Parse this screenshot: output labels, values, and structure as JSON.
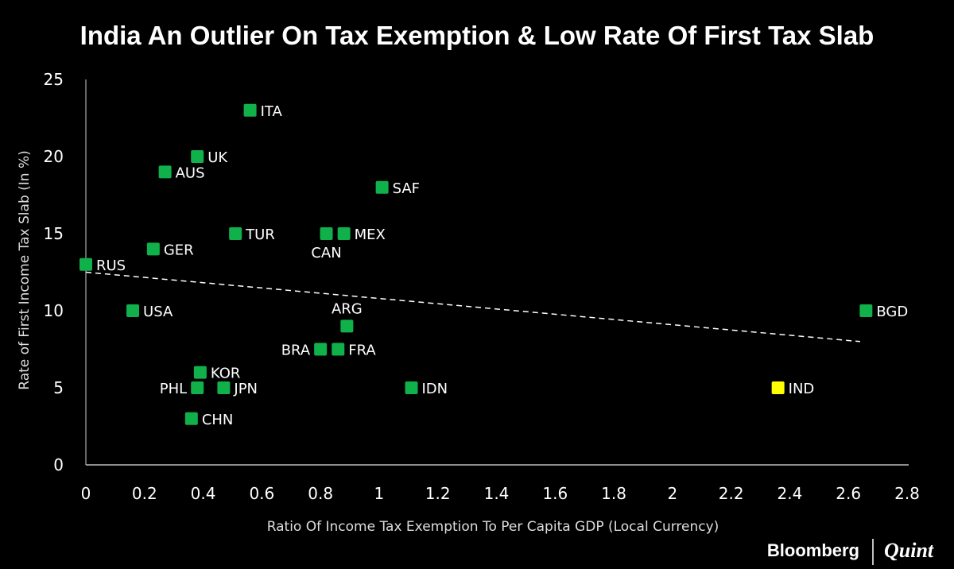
{
  "chart_data": {
    "type": "scatter",
    "title": "India An Outlier On Tax Exemption & Low Rate Of First Tax Slab",
    "xlabel": "Ratio Of Income Tax Exemption To Per Capita GDP (Local Currency)",
    "ylabel": "Rate of First Income Tax Slab (In %)",
    "xlim": [
      0,
      2.8
    ],
    "ylim": [
      0,
      25
    ],
    "xticks": [
      "0",
      "0.2",
      "0.4",
      "0.6",
      "0.8",
      "1",
      "1.2",
      "1.4",
      "1.6",
      "1.8",
      "2",
      "2.2",
      "2.4",
      "2.6",
      "2.8"
    ],
    "yticks": [
      "0",
      "5",
      "10",
      "15",
      "20",
      "25"
    ],
    "grid": false,
    "colors": {
      "default": "#10b04a",
      "highlight": "#ffff00",
      "trendline": "#ffffff",
      "background": "#000000"
    },
    "points": [
      {
        "label": "RUS",
        "x": 0.0,
        "y": 13,
        "labelPos": "right"
      },
      {
        "label": "USA",
        "x": 0.16,
        "y": 10,
        "labelPos": "right"
      },
      {
        "label": "GER",
        "x": 0.23,
        "y": 14,
        "labelPos": "right"
      },
      {
        "label": "AUS",
        "x": 0.27,
        "y": 19,
        "labelPos": "right"
      },
      {
        "label": "UK",
        "x": 0.38,
        "y": 20,
        "labelPos": "right"
      },
      {
        "label": "ITA",
        "x": 0.56,
        "y": 23,
        "labelPos": "right"
      },
      {
        "label": "TUR",
        "x": 0.51,
        "y": 15,
        "labelPos": "right"
      },
      {
        "label": "CAN",
        "x": 0.82,
        "y": 15,
        "labelPos": "below"
      },
      {
        "label": "MEX",
        "x": 0.88,
        "y": 15,
        "labelPos": "right"
      },
      {
        "label": "SAF",
        "x": 1.01,
        "y": 18,
        "labelPos": "right"
      },
      {
        "label": "ARG",
        "x": 0.89,
        "y": 9,
        "labelPos": "above"
      },
      {
        "label": "BRA",
        "x": 0.8,
        "y": 7.5,
        "labelPos": "left"
      },
      {
        "label": "FRA",
        "x": 0.86,
        "y": 7.5,
        "labelPos": "right"
      },
      {
        "label": "KOR",
        "x": 0.39,
        "y": 6,
        "labelPos": "right"
      },
      {
        "label": "PHL",
        "x": 0.38,
        "y": 5,
        "labelPos": "left"
      },
      {
        "label": "JPN",
        "x": 0.47,
        "y": 5,
        "labelPos": "right"
      },
      {
        "label": "CHN",
        "x": 0.36,
        "y": 3,
        "labelPos": "right"
      },
      {
        "label": "IDN",
        "x": 1.11,
        "y": 5,
        "labelPos": "right"
      },
      {
        "label": "IND",
        "x": 2.36,
        "y": 5,
        "labelPos": "right",
        "highlight": true
      },
      {
        "label": "BGD",
        "x": 2.66,
        "y": 10,
        "labelPos": "right"
      }
    ],
    "trendline": {
      "style": "dashed",
      "start": [
        0,
        12.5
      ],
      "end": [
        2.64,
        8.0
      ]
    }
  },
  "branding": {
    "left": "Bloomberg",
    "right": "Quint"
  }
}
